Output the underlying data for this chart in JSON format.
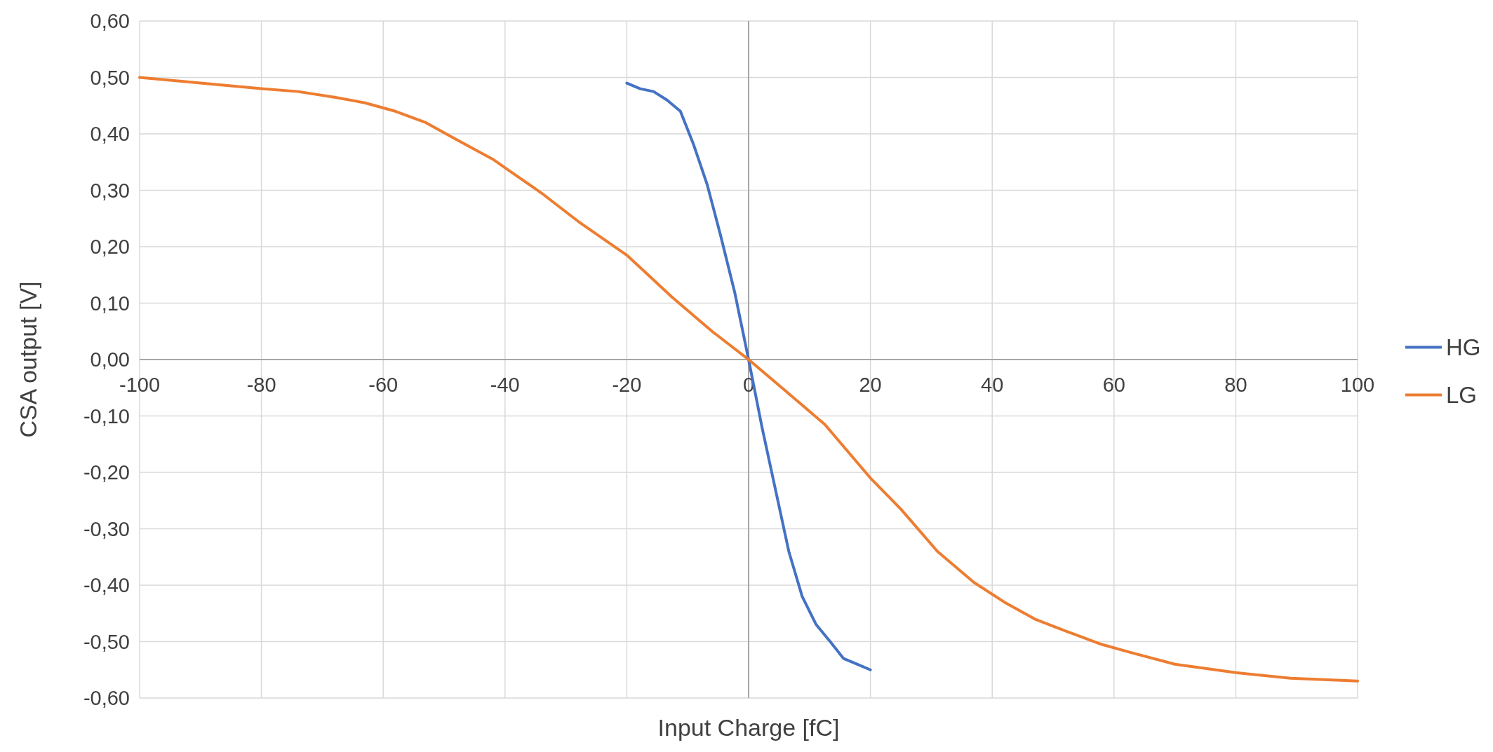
{
  "chart_data": {
    "type": "line",
    "xlabel": "Input Charge [fC]",
    "ylabel": "CSA output [V]",
    "xlim": [
      -100,
      100
    ],
    "xticks": [
      -100,
      -80,
      -60,
      -40,
      -20,
      0,
      20,
      40,
      60,
      80,
      100
    ],
    "ylim": [
      -0.6,
      0.6
    ],
    "yticks": [
      {
        "value": -0.6,
        "label": "-0,60"
      },
      {
        "value": -0.5,
        "label": "-0,50"
      },
      {
        "value": -0.4,
        "label": "-0,40"
      },
      {
        "value": -0.3,
        "label": "-0,30"
      },
      {
        "value": -0.2,
        "label": "-0,20"
      },
      {
        "value": -0.1,
        "label": "-0,10"
      },
      {
        "value": 0,
        "label": "0,00"
      },
      {
        "value": 0.1,
        "label": "0,10"
      },
      {
        "value": 0.2,
        "label": "0,20"
      },
      {
        "value": 0.3,
        "label": "0,30"
      },
      {
        "value": 0.4,
        "label": "0,40"
      },
      {
        "value": 0.5,
        "label": "0,50"
      },
      {
        "value": 0.6,
        "label": "0,60"
      }
    ],
    "grid": true,
    "legend": "right",
    "marker": "none",
    "line_style": "solid",
    "series": [
      {
        "name": "HG",
        "color": "#4472c4",
        "x": [
          -20,
          -17.8,
          -15.6,
          -13.4,
          -11.2,
          -9,
          -6.8,
          -4.6,
          -2.3,
          0,
          2.2,
          4.4,
          6.6,
          8.8,
          11.1,
          13.4,
          15.6,
          17.8,
          20
        ],
        "values": [
          0.49,
          0.48,
          0.475,
          0.46,
          0.44,
          0.38,
          0.31,
          0.22,
          0.12,
          0,
          -0.12,
          -0.23,
          -0.34,
          -0.42,
          -0.47,
          -0.5,
          -0.53,
          -0.54,
          -0.55
        ]
      },
      {
        "name": "LG",
        "color": "#ed7d31",
        "x": [
          -100,
          -90,
          -80,
          -74,
          -68,
          -63,
          -58,
          -53,
          -48,
          -42,
          -40,
          -34,
          -28,
          -20,
          -12.5,
          -6,
          0,
          6,
          12.5,
          20,
          25,
          31,
          37,
          42,
          47,
          53,
          58,
          63,
          70,
          80,
          89,
          100
        ],
        "values": [
          0.5,
          0.49,
          0.48,
          0.475,
          0.465,
          0.455,
          0.44,
          0.42,
          0.39,
          0.355,
          0.34,
          0.295,
          0.245,
          0.185,
          0.11,
          0.05,
          0,
          -0.055,
          -0.115,
          -0.21,
          -0.265,
          -0.34,
          -0.395,
          -0.43,
          -0.46,
          -0.485,
          -0.505,
          -0.52,
          -0.54,
          -0.555,
          -0.565,
          -0.57
        ]
      }
    ]
  }
}
